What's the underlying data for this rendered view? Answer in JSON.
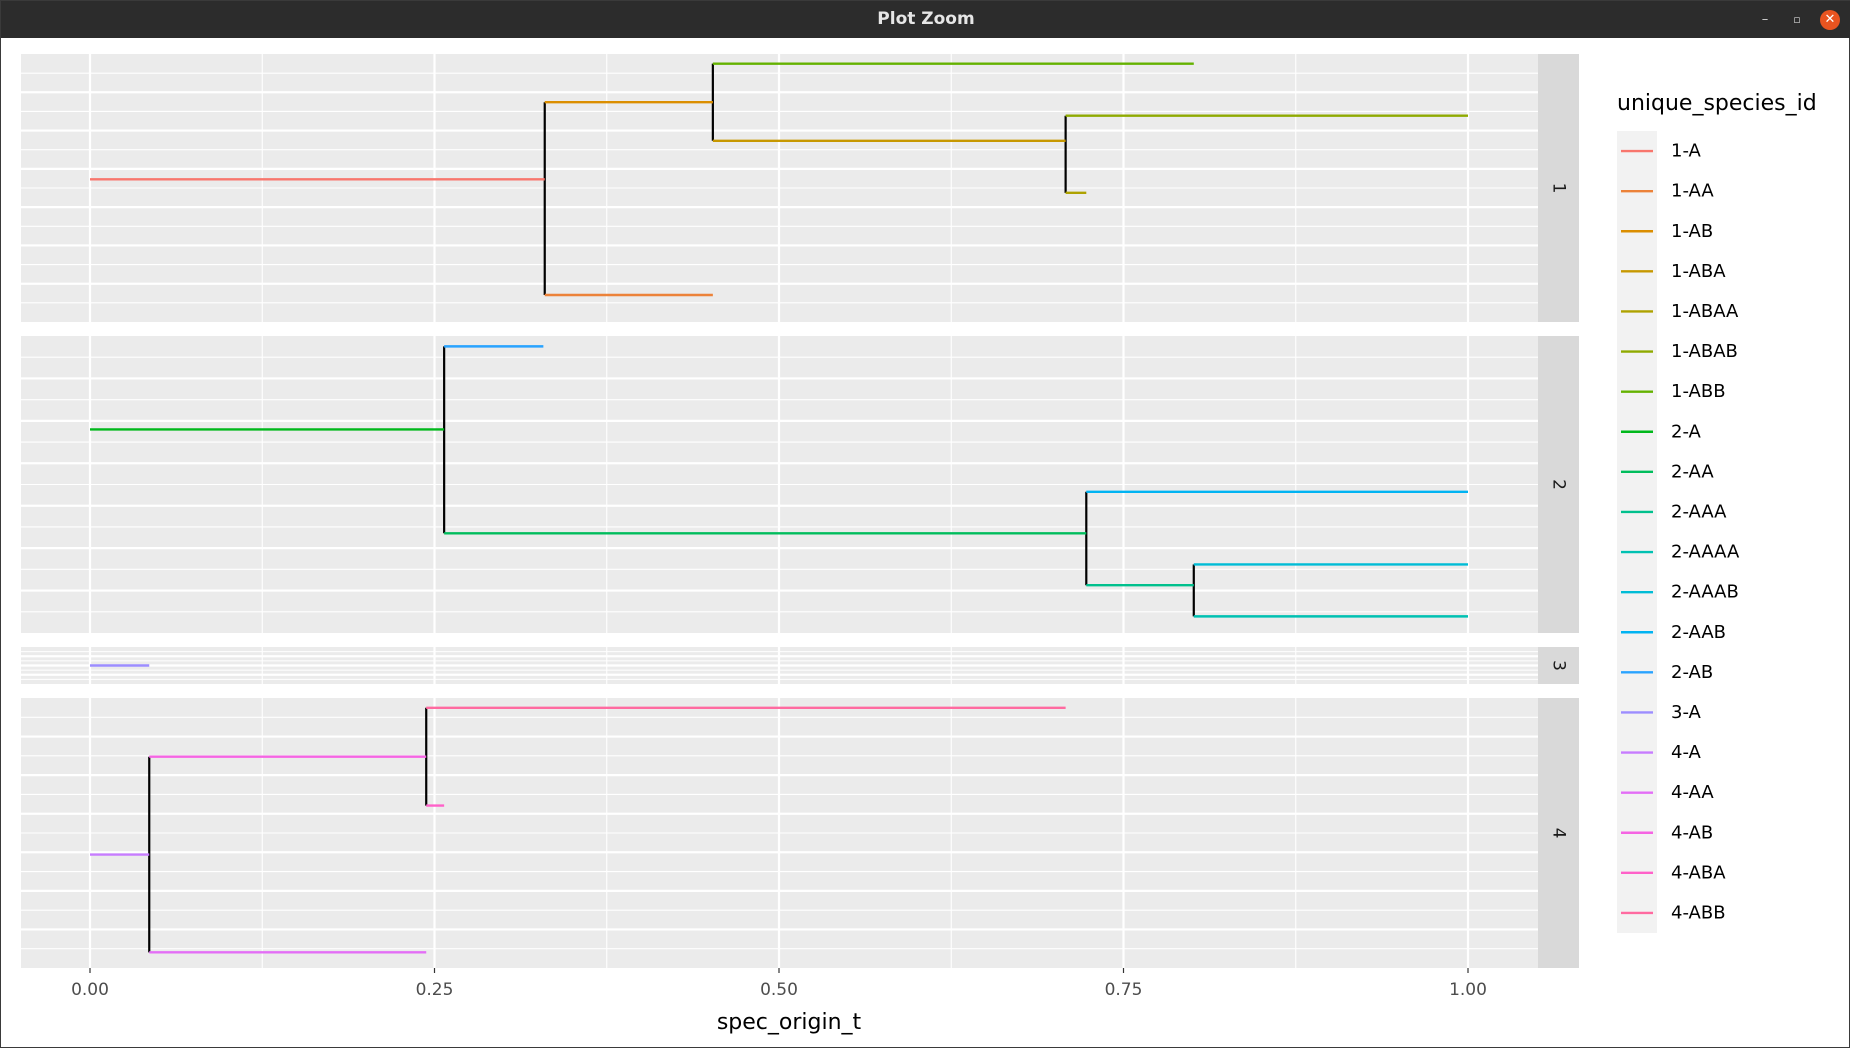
{
  "window": {
    "title": "Plot Zoom",
    "controls": {
      "minimize": "–",
      "maximize": "▫",
      "close": "✕"
    }
  },
  "chart_data": {
    "type": "line",
    "xlabel": "spec_origin_t",
    "xlim": [
      0,
      1
    ],
    "x_ticks": [
      "0.00",
      "0.25",
      "0.50",
      "0.75",
      "1.00"
    ],
    "x_tick_values": [
      0,
      0.25,
      0.5,
      0.75,
      1.0
    ],
    "grid": true,
    "legend": {
      "title": "unique_species_id",
      "placement": "right",
      "entries": [
        {
          "name": "1-A",
          "color": "#F8766D"
        },
        {
          "name": "1-AA",
          "color": "#EC8239"
        },
        {
          "name": "1-AB",
          "color": "#DB8E00"
        },
        {
          "name": "1-ABA",
          "color": "#C79800"
        },
        {
          "name": "1-ABAA",
          "color": "#AEA200"
        },
        {
          "name": "1-ABAB",
          "color": "#8FAA00"
        },
        {
          "name": "1-ABB",
          "color": "#64B200"
        },
        {
          "name": "2-A",
          "color": "#00B81B"
        },
        {
          "name": "2-AA",
          "color": "#00BD5C"
        },
        {
          "name": "2-AAA",
          "color": "#00C08D"
        },
        {
          "name": "2-AAAA",
          "color": "#00C1B2"
        },
        {
          "name": "2-AAAB",
          "color": "#00BCD6"
        },
        {
          "name": "2-AAB",
          "color": "#00B3F2"
        },
        {
          "name": "2-AB",
          "color": "#29A3FF"
        },
        {
          "name": "3-A",
          "color": "#9C8DFF"
        },
        {
          "name": "4-A",
          "color": "#C77CFF"
        },
        {
          "name": "4-AA",
          "color": "#E36EF6"
        },
        {
          "name": "4-AB",
          "color": "#F564E3"
        },
        {
          "name": "4-ABA",
          "color": "#FF61C9"
        },
        {
          "name": "4-ABB",
          "color": "#FF6AA0"
        }
      ]
    },
    "facets": [
      {
        "label": "1",
        "y_levels": 7,
        "segments": [
          {
            "id": "1-A",
            "x0": 0.0,
            "x1": 0.33,
            "y": 4
          },
          {
            "id": "1-AA",
            "x0": 0.33,
            "x1": 0.452,
            "y": 1
          },
          {
            "id": "1-AB",
            "x0": 0.33,
            "x1": 0.452,
            "y": 6
          },
          {
            "id": "1-ABA",
            "x0": 0.452,
            "x1": 0.708,
            "y": 5
          },
          {
            "id": "1-ABAA",
            "x0": 0.708,
            "x1": 0.723,
            "y": 3.65
          },
          {
            "id": "1-ABAB",
            "x0": 0.708,
            "x1": 1.0,
            "y": 5.65
          },
          {
            "id": "1-ABB",
            "x0": 0.452,
            "x1": 0.801,
            "y": 7
          }
        ],
        "connectors": [
          {
            "x": 0.33,
            "y0": 1,
            "y1": 6
          },
          {
            "x": 0.452,
            "y0": 5,
            "y1": 7
          },
          {
            "x": 0.708,
            "y0": 3.65,
            "y1": 5.65
          }
        ]
      },
      {
        "label": "2",
        "y_levels": 7,
        "segments": [
          {
            "id": "2-A",
            "x0": 0.0,
            "x1": 0.257,
            "y": 5
          },
          {
            "id": "2-AA",
            "x0": 0.257,
            "x1": 0.723,
            "y": 2.5
          },
          {
            "id": "2-AAA",
            "x0": 0.723,
            "x1": 0.801,
            "y": 1.25
          },
          {
            "id": "2-AAAA",
            "x0": 0.801,
            "x1": 1.0,
            "y": 0.5
          },
          {
            "id": "2-AAAB",
            "x0": 0.801,
            "x1": 1.0,
            "y": 1.75
          },
          {
            "id": "2-AAB",
            "x0": 0.723,
            "x1": 1.0,
            "y": 3.5
          },
          {
            "id": "2-AB",
            "x0": 0.257,
            "x1": 0.329,
            "y": 7
          }
        ],
        "connectors": [
          {
            "x": 0.257,
            "y0": 2.5,
            "y1": 7
          },
          {
            "x": 0.723,
            "y0": 1.25,
            "y1": 3.5
          },
          {
            "x": 0.801,
            "y0": 0.5,
            "y1": 1.75
          }
        ]
      },
      {
        "label": "3",
        "y_levels": 1,
        "segments": [
          {
            "id": "3-A",
            "x0": 0.0,
            "x1": 0.043,
            "y": 0.5
          }
        ],
        "connectors": []
      },
      {
        "label": "4",
        "y_levels": 6,
        "segments": [
          {
            "id": "4-A",
            "x0": 0.0,
            "x1": 0.043,
            "y": 2.5
          },
          {
            "id": "4-AA",
            "x0": 0.043,
            "x1": 0.244,
            "y": 0
          },
          {
            "id": "4-AB",
            "x0": 0.043,
            "x1": 0.244,
            "y": 5
          },
          {
            "id": "4-ABA",
            "x0": 0.244,
            "x1": 0.257,
            "y": 3.75
          },
          {
            "id": "4-ABB",
            "x0": 0.244,
            "x1": 0.708,
            "y": 6.25
          }
        ],
        "connectors": [
          {
            "x": 0.043,
            "y0": 0,
            "y1": 5
          },
          {
            "x": 0.244,
            "y0": 3.75,
            "y1": 6.25
          }
        ]
      }
    ]
  }
}
